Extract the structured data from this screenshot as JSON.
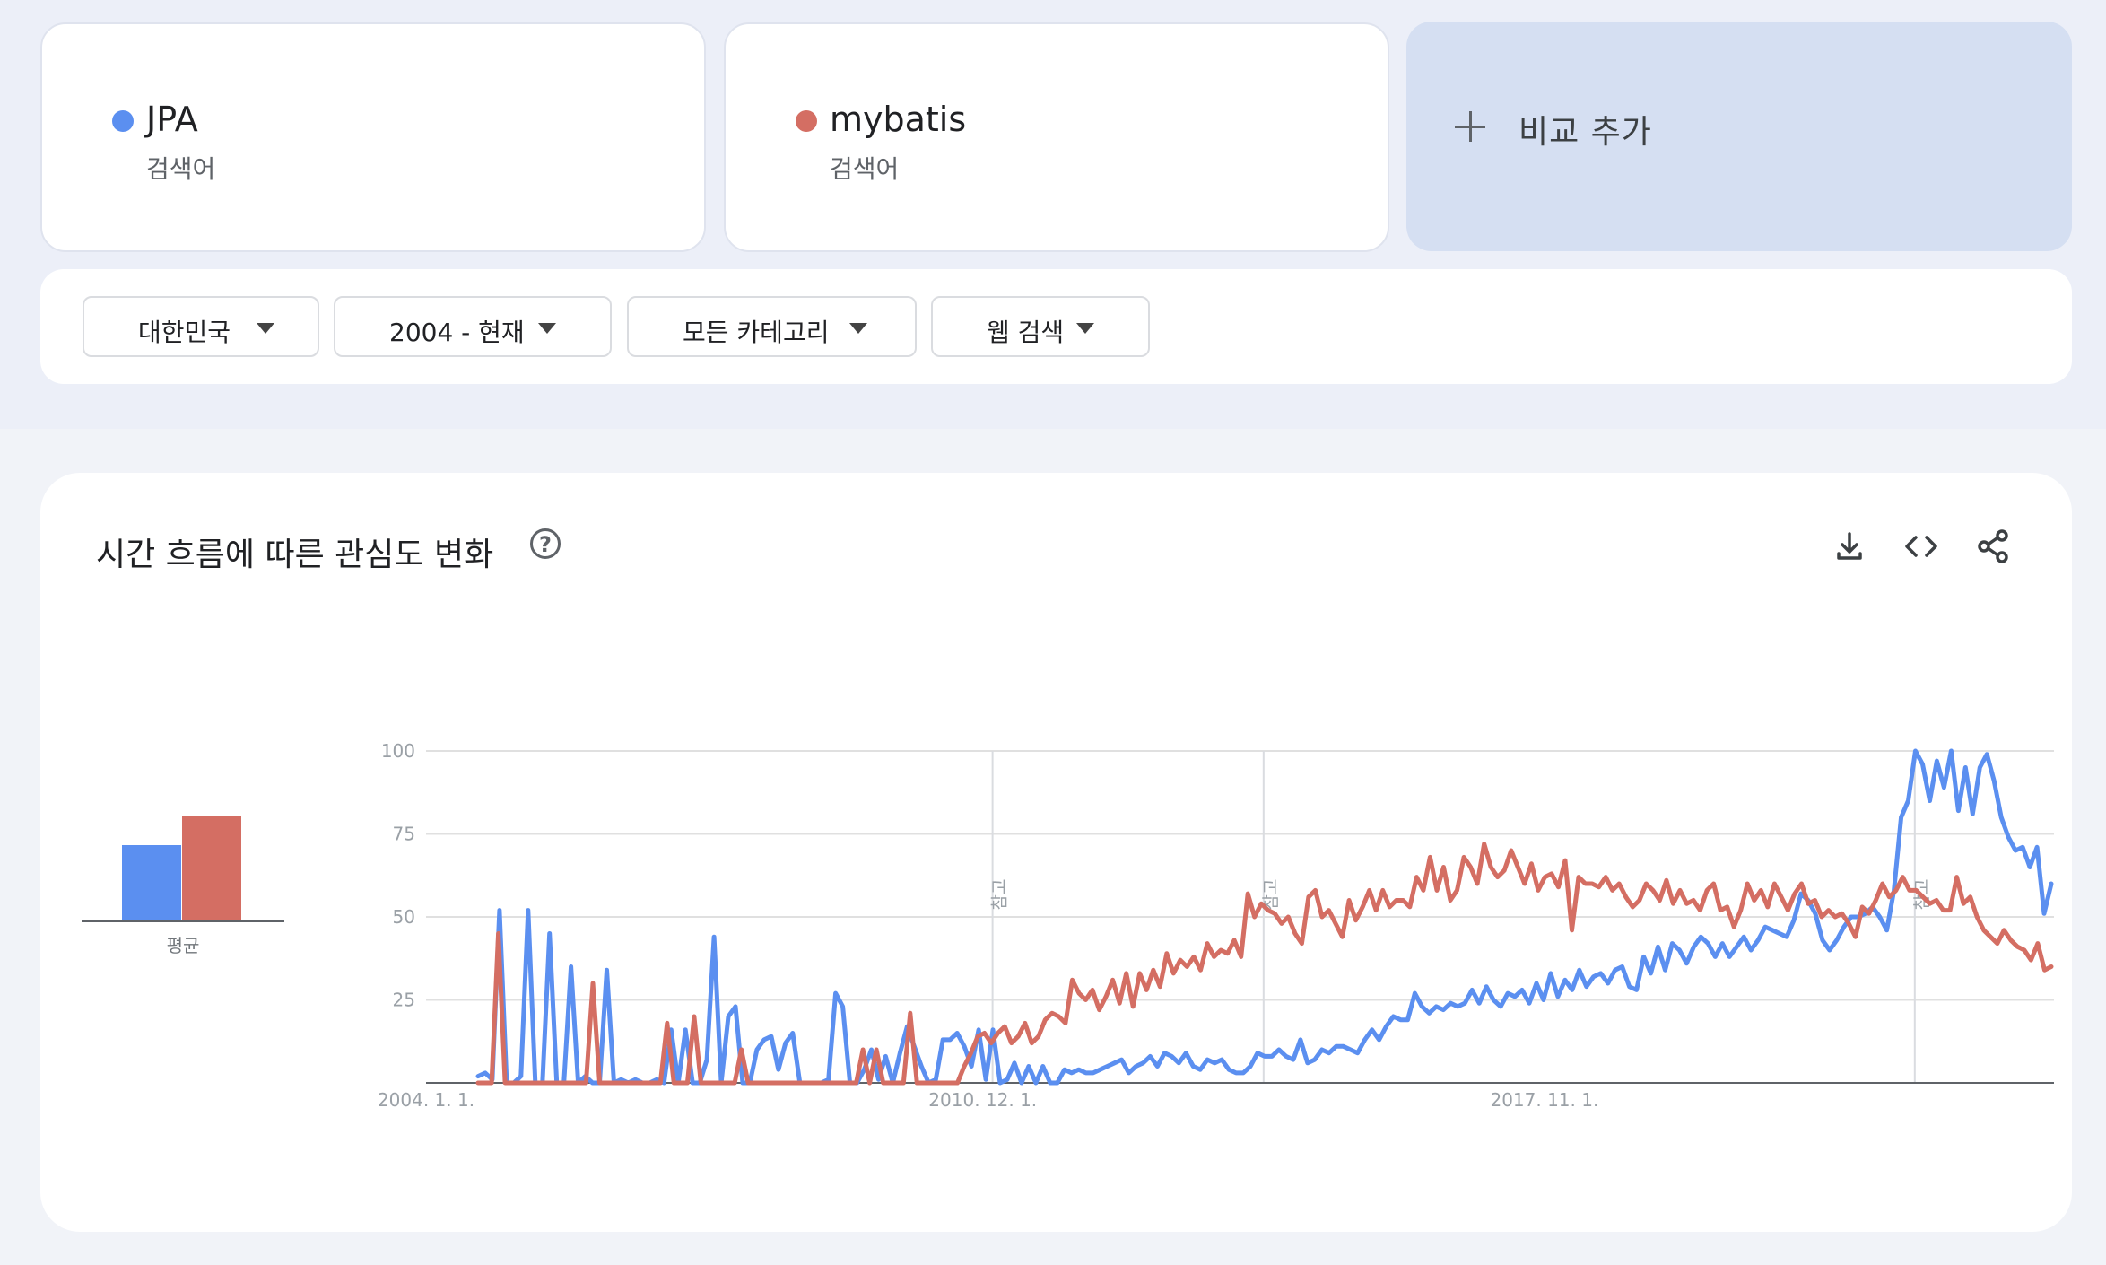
{
  "terms": [
    {
      "name": "JPA",
      "type": "검색어",
      "color": "#5b8ff0"
    },
    {
      "name": "mybatis",
      "type": "검색어",
      "color": "#d46e63"
    }
  ],
  "add_compare": {
    "label": "비교 추가",
    "icon": "plus-icon"
  },
  "filters": [
    {
      "label": "대한민국"
    },
    {
      "label": "2004 - 현재"
    },
    {
      "label": "모든 카테고리"
    },
    {
      "label": "웹 검색"
    }
  ],
  "panel": {
    "title": "시간 흐름에 따른 관심도 변화",
    "help_icon": "help-circle-icon",
    "tools": [
      "download-icon",
      "embed-code-icon",
      "share-icon"
    ]
  },
  "average": {
    "label": "평균",
    "values": [
      23,
      32
    ]
  },
  "chart_data": {
    "type": "line",
    "y_ticks": [
      "100",
      "75",
      "50",
      "25"
    ],
    "ylim": [
      0,
      100
    ],
    "x_tick_labels": [
      "2004. 1. 1.",
      "2010. 12. 1.",
      "2017. 11. 1."
    ],
    "note_label": "참고",
    "grid": true,
    "series": [
      {
        "name": "JPA",
        "color": "#5b8ff0",
        "values": [
          2,
          3,
          1,
          52,
          0,
          0,
          2,
          52,
          0,
          0,
          45,
          0,
          0,
          35,
          0,
          2,
          0,
          0,
          34,
          0,
          1,
          0,
          1,
          0,
          0,
          1,
          0,
          16,
          0,
          16,
          0,
          0,
          7,
          44,
          0,
          20,
          23,
          0,
          0,
          10,
          13,
          14,
          4,
          12,
          15,
          0,
          0,
          0,
          0,
          1,
          27,
          23,
          0,
          0,
          4,
          10,
          1,
          8,
          0,
          9,
          17,
          11,
          5,
          0,
          1,
          13,
          13,
          15,
          11,
          5,
          16,
          1,
          16,
          0,
          1,
          6,
          0,
          5,
          0,
          5,
          0,
          0,
          4,
          3,
          4,
          3,
          3,
          4,
          5,
          6,
          7,
          3,
          5,
          6,
          8,
          5,
          9,
          8,
          6,
          9,
          5,
          4,
          7,
          6,
          7,
          4,
          3,
          3,
          5,
          9,
          8,
          8,
          10,
          8,
          7,
          13,
          6,
          7,
          10,
          9,
          11,
          11,
          10,
          9,
          13,
          16,
          13,
          17,
          20,
          19,
          19,
          27,
          23,
          21,
          23,
          22,
          24,
          23,
          24,
          28,
          24,
          29,
          25,
          23,
          27,
          26,
          28,
          24,
          30,
          25,
          33,
          26,
          31,
          28,
          34,
          29,
          32,
          33,
          30,
          34,
          35,
          29,
          28,
          38,
          33,
          41,
          34,
          42,
          40,
          36,
          41,
          44,
          42,
          38,
          42,
          38,
          41,
          44,
          40,
          43,
          47,
          46,
          45,
          44,
          49,
          57,
          55,
          51,
          43,
          40,
          43,
          47,
          50,
          50,
          51,
          53,
          50,
          46,
          58,
          80,
          85,
          100,
          96,
          85,
          97,
          89,
          100,
          82,
          95,
          81,
          95,
          99,
          91,
          80,
          74,
          70,
          71,
          65,
          71,
          51,
          60
        ]
      },
      {
        "name": "mybatis",
        "color": "#d46e63",
        "values": [
          0,
          0,
          0,
          45,
          0,
          0,
          0,
          0,
          0,
          0,
          0,
          0,
          0,
          0,
          0,
          0,
          0,
          30,
          0,
          0,
          0,
          0,
          0,
          0,
          0,
          0,
          0,
          0,
          18,
          0,
          0,
          0,
          20,
          0,
          0,
          0,
          0,
          0,
          0,
          10,
          0,
          0,
          0,
          0,
          0,
          0,
          0,
          0,
          0,
          0,
          0,
          0,
          0,
          0,
          0,
          0,
          0,
          10,
          0,
          10,
          0,
          0,
          0,
          0,
          21,
          0,
          0,
          0,
          0,
          0,
          0,
          0,
          5,
          9,
          14,
          15,
          12,
          15,
          17,
          12,
          14,
          18,
          12,
          14,
          19,
          21,
          20,
          18,
          31,
          27,
          25,
          28,
          22,
          26,
          31,
          24,
          33,
          23,
          33,
          28,
          34,
          29,
          39,
          33,
          37,
          35,
          38,
          34,
          42,
          38,
          40,
          39,
          43,
          38,
          57,
          50,
          54,
          52,
          51,
          48,
          50,
          45,
          42,
          56,
          58,
          50,
          52,
          48,
          44,
          55,
          49,
          53,
          58,
          52,
          58,
          53,
          55,
          55,
          53,
          62,
          58,
          68,
          58,
          65,
          55,
          58,
          68,
          65,
          60,
          72,
          65,
          62,
          64,
          70,
          65,
          60,
          66,
          58,
          62,
          63,
          59,
          67,
          46,
          62,
          60,
          60,
          59,
          62,
          58,
          60,
          56,
          53,
          55,
          60,
          58,
          55,
          61,
          54,
          58,
          54,
          55,
          52,
          58,
          60,
          52,
          53,
          47,
          52,
          60,
          55,
          58,
          53,
          60,
          56,
          52,
          57,
          60,
          54,
          55,
          50,
          52,
          50,
          51,
          48,
          44,
          53,
          51,
          55,
          60,
          56,
          58,
          62,
          58,
          58,
          56,
          54,
          55,
          52,
          52,
          62,
          54,
          56,
          50,
          46,
          44,
          42,
          46,
          43,
          41,
          40,
          37,
          42,
          34,
          35
        ]
      }
    ]
  }
}
